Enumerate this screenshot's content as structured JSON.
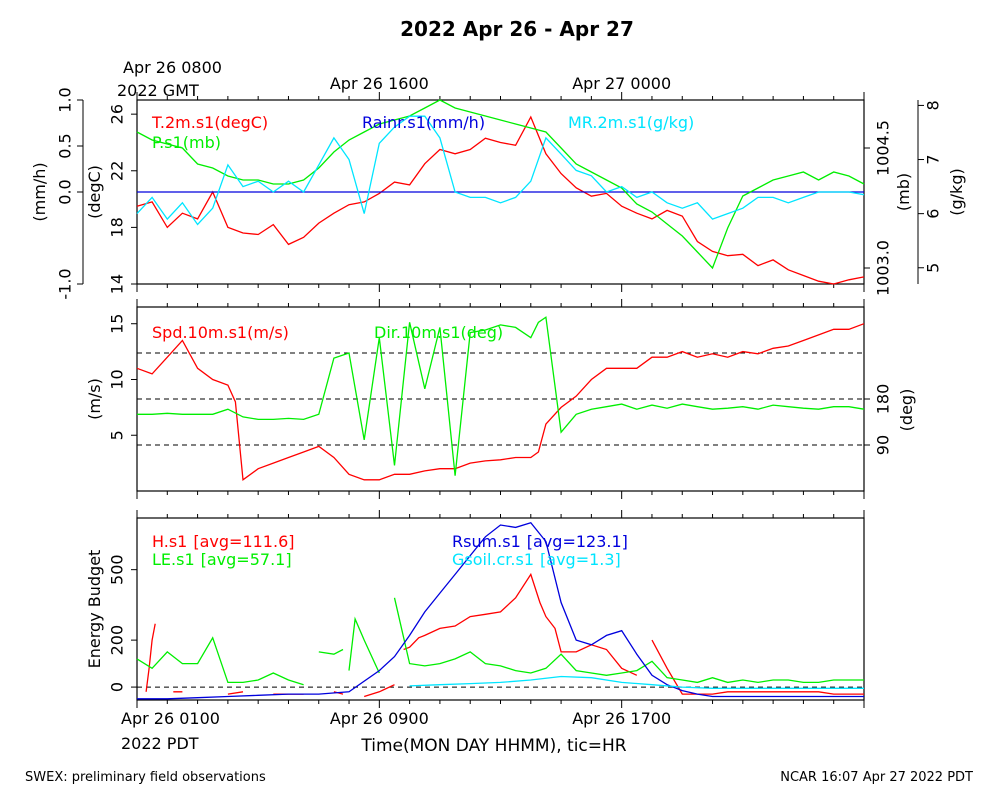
{
  "title": "2022 Apr 26 - Apr 27",
  "footer_left": "SWEX: preliminary field observations",
  "footer_right": "NCAR 16:07 Apr 27 2022 PDT",
  "top_time_labels": [
    {
      "line1": "Apr 26 0800",
      "line2": "2022 GMT",
      "hour": 0
    },
    {
      "line1": "Apr 26 1600",
      "line2": "",
      "hour": 8
    },
    {
      "line1": "Apr 27 0000",
      "line2": "",
      "hour": 16
    }
  ],
  "bottom_time_labels": [
    {
      "line1": "Apr 26 0100",
      "line2": "2022 PDT",
      "hour": 0
    },
    {
      "line1": "Apr 26 0900",
      "line2": "",
      "hour": 8
    },
    {
      "line1": "Apr 26 1700",
      "line2": "",
      "hour": 16
    }
  ],
  "xlabel": "Time(MON DAY HHMM), tic=HR",
  "colors": {
    "red": "#ff0000",
    "green": "#00ee00",
    "cyan": "#00e5ff",
    "blue": "#0000dd",
    "black": "#000000"
  },
  "chart_data": [
    {
      "type": "line",
      "panel": "thermo",
      "x_unit": "hours since Apr 26 0100 PDT",
      "xlim": [
        0,
        24
      ],
      "axes": {
        "rain": {
          "label": "(mm/h)",
          "ylim": [
            -1.0,
            1.0
          ],
          "ticks": [
            "-1.0",
            "0.0",
            "0.5",
            "1.0"
          ],
          "tick_values": [
            -1.0,
            0.0,
            0.5,
            1.0
          ]
        },
        "temp": {
          "label": "(degC)",
          "ylim": [
            14,
            27
          ],
          "ticks": [
            "14",
            "18",
            "22",
            "26"
          ],
          "tick_values": [
            14,
            18,
            22,
            26
          ]
        },
        "pres": {
          "label": "(mb)",
          "ylim": [
            1002.8,
            1005.1
          ],
          "ticks": [
            "1003.0",
            "1004.5"
          ],
          "tick_values": [
            1003.0,
            1004.5
          ]
        },
        "mr": {
          "label": "(g/kg)",
          "ylim": [
            4.7,
            8.1
          ],
          "ticks": [
            "5",
            "6",
            "7",
            "8"
          ],
          "tick_values": [
            5,
            6,
            7,
            8
          ]
        }
      },
      "series": [
        {
          "name": "T.2m.s1(degC)",
          "color": "#ff0000",
          "axis": "temp",
          "x": [
            0,
            0.5,
            1,
            1.5,
            2,
            2.5,
            3,
            3.5,
            4,
            4.5,
            5,
            5.5,
            6,
            6.5,
            7,
            7.5,
            8,
            8.5,
            9,
            9.5,
            10,
            10.5,
            11,
            11.5,
            12,
            12.5,
            13,
            13.5,
            14,
            14.5,
            15,
            15.5,
            16,
            16.5,
            17,
            17.5,
            18,
            18.5,
            19,
            19.5,
            20,
            20.5,
            21,
            21.5,
            22,
            22.5,
            23,
            23.5,
            24
          ],
          "y": [
            19.5,
            19.8,
            18.0,
            19.0,
            18.6,
            20.5,
            18.0,
            17.6,
            17.5,
            18.2,
            16.8,
            17.3,
            18.3,
            19.0,
            19.6,
            19.8,
            20.4,
            21.2,
            21.0,
            22.5,
            23.5,
            23.2,
            23.5,
            24.3,
            24.0,
            23.8,
            25.8,
            23.2,
            21.8,
            20.8,
            20.2,
            20.4,
            19.5,
            19.0,
            18.6,
            19.2,
            18.8,
            17.0,
            16.3,
            16.0,
            16.1,
            15.3,
            15.7,
            15.0,
            14.6,
            14.2,
            14.0,
            14.3,
            14.5
          ]
        },
        {
          "name": "Rainr.s1(mm/h)",
          "color": "#0000dd",
          "axis": "rain",
          "x": [
            0,
            24
          ],
          "y": [
            0.0,
            0.0
          ]
        },
        {
          "name": "P.s1(mb)",
          "color": "#00ee00",
          "axis": "pres",
          "x": [
            0,
            0.5,
            1,
            1.5,
            2,
            2.5,
            3,
            3.5,
            4,
            4.5,
            5,
            5.5,
            6,
            6.5,
            7,
            7.5,
            8,
            8.5,
            9,
            9.5,
            10,
            10.5,
            11,
            11.5,
            12,
            12.5,
            13,
            13.5,
            14,
            14.5,
            15,
            15.5,
            16,
            16.5,
            17,
            17.5,
            18,
            18.5,
            19,
            19.5,
            20,
            20.5,
            21,
            21.5,
            22,
            22.5,
            23,
            23.5,
            24
          ],
          "y": [
            1004.7,
            1004.6,
            1004.55,
            1004.5,
            1004.3,
            1004.25,
            1004.15,
            1004.1,
            1004.1,
            1004.05,
            1004.05,
            1004.1,
            1004.25,
            1004.45,
            1004.6,
            1004.7,
            1004.8,
            1004.85,
            1004.9,
            1005.0,
            1005.1,
            1005.0,
            1004.95,
            1004.9,
            1004.85,
            1004.8,
            1004.75,
            1004.7,
            1004.5,
            1004.3,
            1004.2,
            1004.1,
            1004.0,
            1003.8,
            1003.7,
            1003.55,
            1003.4,
            1003.2,
            1003.0,
            1003.5,
            1003.9,
            1004.0,
            1004.1,
            1004.15,
            1004.2,
            1004.1,
            1004.2,
            1004.15,
            1004.05
          ]
        },
        {
          "name": "MR.2m.s1(g/kg)",
          "color": "#00e5ff",
          "axis": "mr",
          "x": [
            0,
            0.5,
            1,
            1.5,
            2,
            2.5,
            3,
            3.5,
            4,
            4.5,
            5,
            5.5,
            6,
            6.5,
            7,
            7.5,
            8,
            8.5,
            9,
            9.5,
            10,
            10.5,
            11,
            11.5,
            12,
            12.5,
            13,
            13.5,
            14,
            14.5,
            15,
            15.5,
            16,
            16.5,
            17,
            17.5,
            18,
            18.5,
            19,
            19.5,
            20,
            20.5,
            21,
            21.5,
            22,
            22.5,
            23,
            23.5,
            24
          ],
          "y": [
            6.0,
            6.3,
            5.9,
            6.2,
            5.8,
            6.1,
            6.9,
            6.5,
            6.6,
            6.4,
            6.6,
            6.4,
            6.9,
            7.4,
            7.0,
            6.0,
            7.3,
            7.6,
            7.8,
            7.8,
            7.4,
            6.4,
            6.3,
            6.3,
            6.2,
            6.3,
            6.6,
            7.4,
            7.1,
            6.8,
            6.7,
            6.4,
            6.5,
            6.3,
            6.4,
            6.2,
            6.1,
            6.2,
            5.9,
            6.0,
            6.1,
            6.3,
            6.3,
            6.2,
            6.3,
            6.4,
            6.4,
            6.4,
            6.35
          ]
        }
      ]
    },
    {
      "type": "line",
      "panel": "wind",
      "x_unit": "hours since Apr 26 0100 PDT",
      "xlim": [
        0,
        24
      ],
      "axes": {
        "spd": {
          "label": "(m/s)",
          "ylim": [
            0,
            16.5
          ],
          "ticks": [
            "5",
            "10",
            "15"
          ],
          "tick_values": [
            5,
            10,
            15
          ]
        },
        "dir": {
          "label": "(deg)",
          "ylim": [
            0,
            360
          ],
          "ticks": [
            "90",
            "180"
          ],
          "tick_values": [
            90,
            180
          ]
        }
      },
      "reference_lines": {
        "axis": "dir",
        "values": [
          90,
          180,
          270
        ]
      },
      "series": [
        {
          "name": "Spd.10m.s1(m/s)",
          "color": "#ff0000",
          "axis": "spd",
          "x": [
            0,
            0.5,
            1,
            1.5,
            2,
            2.5,
            3,
            3.25,
            3.5,
            4,
            4.5,
            5,
            5.5,
            6,
            6.5,
            7,
            7.5,
            8,
            8.5,
            9,
            9.5,
            10,
            10.5,
            11,
            11.5,
            12,
            12.5,
            13,
            13.25,
            13.5,
            14,
            14.5,
            15,
            15.5,
            16,
            16.5,
            17,
            17.5,
            18,
            18.5,
            19,
            19.5,
            20,
            20.5,
            21,
            21.5,
            22,
            22.5,
            23,
            23.5,
            24
          ],
          "y": [
            11.0,
            10.5,
            12.0,
            13.5,
            11.0,
            10.0,
            9.5,
            8.0,
            1.0,
            2.0,
            2.5,
            3.0,
            3.5,
            4.0,
            3.0,
            1.5,
            1.0,
            1.0,
            1.5,
            1.5,
            1.8,
            2.0,
            2.0,
            2.5,
            2.7,
            2.8,
            3.0,
            3.0,
            3.5,
            6.0,
            7.5,
            8.5,
            10.0,
            11.0,
            11.0,
            11.0,
            12.0,
            12.0,
            12.5,
            12.0,
            12.3,
            12.0,
            12.5,
            12.3,
            12.8,
            13.0,
            13.5,
            14.0,
            14.5,
            14.5,
            15.0
          ]
        },
        {
          "name": "Dir.10m.s1(deg)",
          "color": "#00ee00",
          "axis": "dir",
          "x": [
            0,
            0.5,
            1,
            1.5,
            2,
            2.5,
            3,
            3.5,
            4,
            4.5,
            5,
            5.5,
            6,
            6.5,
            7,
            7.5,
            8,
            8.5,
            9,
            9.5,
            10,
            10.5,
            11,
            11.5,
            12,
            12.5,
            13,
            13.25,
            13.5,
            14,
            14.5,
            15,
            15.5,
            16,
            16.5,
            17,
            17.5,
            18,
            18.5,
            19,
            19.5,
            20,
            20.5,
            21,
            21.5,
            22,
            22.5,
            23,
            23.5,
            24
          ],
          "y": [
            150,
            150,
            152,
            150,
            150,
            150,
            160,
            145,
            140,
            140,
            142,
            140,
            150,
            260,
            270,
            100,
            300,
            50,
            330,
            200,
            320,
            30,
            310,
            315,
            325,
            320,
            300,
            330,
            340,
            115,
            150,
            160,
            165,
            170,
            160,
            168,
            162,
            170,
            165,
            160,
            162,
            165,
            160,
            168,
            165,
            162,
            160,
            165,
            165,
            160
          ]
        }
      ]
    },
    {
      "type": "line",
      "panel": "energy",
      "x_unit": "hours since Apr 26 0100 PDT",
      "xlim": [
        0,
        24
      ],
      "ylabel": "Energy Budget",
      "ylim": [
        -55,
        720
      ],
      "yticks": [
        "0",
        "200",
        "500"
      ],
      "ytick_values": [
        0,
        200,
        500
      ],
      "reference_lines": [
        0
      ],
      "series": [
        {
          "name": "H.s1",
          "stat": "[avg=111.6]",
          "color": "#ff0000",
          "x": [
            0.3,
            0.4,
            0.5,
            0.6,
            null,
            1.2,
            1.5,
            null,
            3.0,
            3.5,
            null,
            4.5,
            5.5,
            null,
            6.5,
            6.8,
            null,
            7.5,
            8.0,
            8.5,
            null,
            8.8,
            9.0,
            9.3,
            9.5,
            10.0,
            10.5,
            11.0,
            11.5,
            12.0,
            12.5,
            13.0,
            13.3,
            13.5,
            13.8,
            14.0,
            14.5,
            15.0,
            15.5,
            16.0,
            16.5,
            null,
            17.0,
            17.5,
            18.0,
            18.5,
            19.0,
            19.5,
            20.0,
            20.5,
            21.0,
            21.5,
            22.0,
            22.5,
            23.0,
            23.5,
            24.0
          ],
          "y": [
            -20,
            80,
            200,
            270,
            null,
            -20,
            -20,
            null,
            -30,
            -20,
            null,
            -30,
            -30,
            null,
            -20,
            -30,
            null,
            -40,
            -20,
            10,
            null,
            160,
            170,
            210,
            220,
            250,
            260,
            300,
            310,
            320,
            380,
            480,
            360,
            300,
            250,
            150,
            150,
            180,
            160,
            80,
            50,
            null,
            200,
            80,
            -30,
            -30,
            -30,
            -20,
            -20,
            -20,
            -20,
            -20,
            -20,
            -20,
            -30,
            -30,
            -30
          ]
        },
        {
          "name": "LE.s1",
          "stat": "[avg=57.1]",
          "color": "#00ee00",
          "x": [
            0,
            0.5,
            1,
            1.5,
            2,
            2.5,
            3,
            3.5,
            4,
            4.5,
            5,
            5.5,
            null,
            6.0,
            6.5,
            6.8,
            null,
            7.0,
            7.2,
            7.5,
            8.0,
            null,
            8.5,
            9.0,
            9.5,
            10.0,
            10.5,
            11.0,
            11.5,
            12.0,
            12.5,
            13.0,
            13.5,
            14.0,
            14.5,
            15.0,
            15.5,
            16.0,
            16.5,
            17.0,
            17.5,
            18.0,
            18.5,
            19.0,
            19.5,
            20.0,
            20.5,
            21.0,
            21.5,
            22.0,
            22.5,
            23.0,
            23.5,
            24.0
          ],
          "y": [
            120,
            80,
            150,
            100,
            100,
            210,
            20,
            20,
            30,
            60,
            30,
            10,
            null,
            150,
            140,
            160,
            null,
            70,
            290,
            200,
            60,
            null,
            380,
            100,
            90,
            100,
            120,
            150,
            100,
            90,
            70,
            60,
            80,
            140,
            70,
            60,
            50,
            60,
            70,
            110,
            40,
            30,
            20,
            40,
            20,
            30,
            20,
            30,
            30,
            20,
            20,
            30,
            30,
            30
          ]
        },
        {
          "name": "Rsum.s1",
          "stat": "[avg=123.1]",
          "color": "#0000dd",
          "x": [
            0,
            1,
            2,
            3,
            4,
            5,
            6,
            7,
            8,
            8.5,
            9,
            9.5,
            10,
            10.5,
            11,
            11.5,
            12,
            12.5,
            13,
            13.5,
            14,
            14.5,
            15,
            15.5,
            16,
            16.5,
            17,
            17.5,
            18,
            18.5,
            19,
            20,
            21,
            22,
            23,
            24
          ],
          "y": [
            -50,
            -50,
            -45,
            -40,
            -35,
            -30,
            -30,
            -20,
            70,
            130,
            220,
            320,
            400,
            480,
            560,
            640,
            690,
            680,
            700,
            620,
            360,
            200,
            180,
            220,
            240,
            140,
            50,
            10,
            -15,
            -30,
            -40,
            -40,
            -40,
            -40,
            -40,
            -40
          ]
        },
        {
          "name": "Gsoil.cr.s1",
          "stat": "[avg=1.3]",
          "color": "#00e5ff",
          "x": [
            9,
            10,
            11,
            12,
            13,
            14,
            15,
            16,
            17,
            18,
            19,
            20,
            21,
            22,
            23,
            24
          ],
          "y": [
            5,
            10,
            15,
            20,
            30,
            45,
            40,
            20,
            10,
            0,
            -5,
            -5,
            -5,
            -5,
            -5,
            -5
          ]
        }
      ]
    }
  ]
}
